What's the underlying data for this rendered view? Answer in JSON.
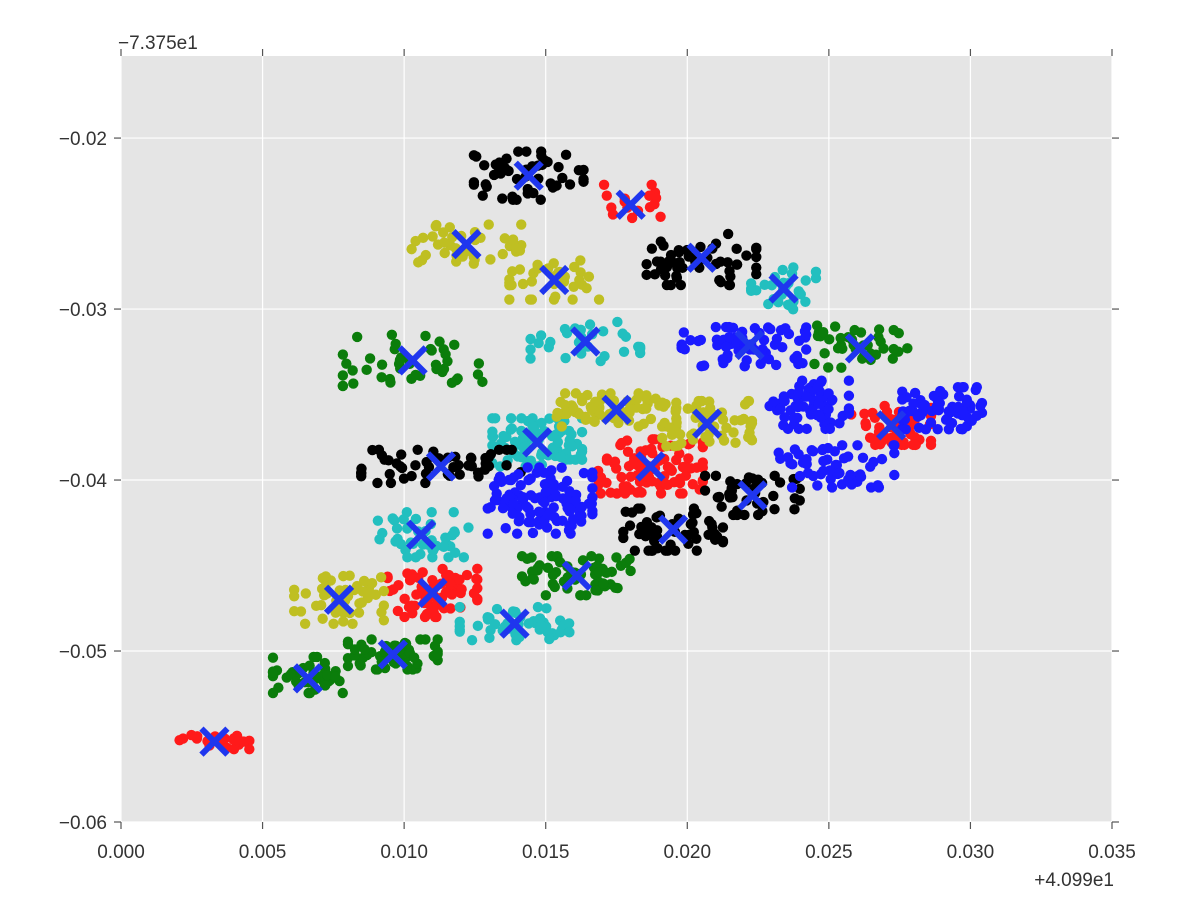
{
  "chart_data": {
    "type": "scatter",
    "title": "",
    "xlabel": "",
    "ylabel": "",
    "x_offset_label": "+4.099e1",
    "y_offset_label": "−7.375e1",
    "xlim": [
      0.0,
      0.035
    ],
    "ylim": [
      -0.06,
      -0.0152
    ],
    "x_ticks": [
      0.0,
      0.005,
      0.01,
      0.015,
      0.02,
      0.025,
      0.03,
      0.035
    ],
    "x_tick_labels": [
      "0.000",
      "0.005",
      "0.010",
      "0.015",
      "0.020",
      "0.025",
      "0.030",
      "0.035"
    ],
    "y_ticks": [
      -0.02,
      -0.03,
      -0.04,
      -0.05,
      -0.06
    ],
    "y_tick_labels": [
      "−0.02",
      "−0.03",
      "−0.04",
      "−0.05",
      "−0.06"
    ],
    "grid": true,
    "legend": "none",
    "colors": {
      "plot_background": "#e5e5e5",
      "grid": "#ffffff",
      "red": "#ff1a1a",
      "green": "#0b7d0b",
      "cyan": "#22bfbf",
      "yellow": "#bfbf22",
      "black": "#000000",
      "blue": "#1a1aff",
      "centroid": "#1f36ee"
    },
    "centroid_marker": "x",
    "series": [
      {
        "color": "#ff1a1a",
        "clusters": [
          {
            "center": [
              0.0033,
              -0.0553
            ],
            "spread": [
              0.0014,
              0.0005
            ],
            "n": 22
          },
          {
            "center": [
              0.011,
              -0.0466
            ],
            "spread": [
              0.0018,
              0.0016
            ],
            "n": 70
          },
          {
            "center": [
              0.0187,
              -0.0392
            ],
            "spread": [
              0.0021,
              0.0018
            ],
            "n": 95
          },
          {
            "center": [
              0.0272,
              -0.0368
            ],
            "spread": [
              0.0016,
              0.0013
            ],
            "n": 55
          },
          {
            "center": [
              0.018,
              -0.0237
            ],
            "spread": [
              0.0012,
              0.0011
            ],
            "n": 16
          }
        ]
      },
      {
        "color": "#0b7d0b",
        "clusters": [
          {
            "center": [
              0.0066,
              -0.0514
            ],
            "spread": [
              0.0014,
              0.0012
            ],
            "n": 40
          },
          {
            "center": [
              0.0096,
              -0.0502
            ],
            "spread": [
              0.0018,
              0.001
            ],
            "n": 55
          },
          {
            "center": [
              0.0161,
              -0.0456
            ],
            "spread": [
              0.0022,
              0.0013
            ],
            "n": 60
          },
          {
            "center": [
              0.0103,
              -0.033
            ],
            "spread": [
              0.0028,
              0.0017
            ],
            "n": 45
          },
          {
            "center": [
              0.0261,
              -0.0322
            ],
            "spread": [
              0.0019,
              0.0014
            ],
            "n": 40
          }
        ]
      },
      {
        "color": "#22bfbf",
        "clusters": [
          {
            "center": [
              0.0106,
              -0.0432
            ],
            "spread": [
              0.0019,
              0.0015
            ],
            "n": 45
          },
          {
            "center": [
              0.0139,
              -0.0484
            ],
            "spread": [
              0.0022,
              0.0011
            ],
            "n": 50
          },
          {
            "center": [
              0.0147,
              -0.0378
            ],
            "spread": [
              0.0018,
              0.0016
            ],
            "n": 80
          },
          {
            "center": [
              0.0164,
              -0.0319
            ],
            "spread": [
              0.0022,
              0.0013
            ],
            "n": 30
          },
          {
            "center": [
              0.0234,
              -0.0288
            ],
            "spread": [
              0.0013,
              0.0014
            ],
            "n": 30
          }
        ]
      },
      {
        "color": "#bfbf22",
        "clusters": [
          {
            "center": [
              0.0077,
              -0.047
            ],
            "spread": [
              0.0018,
              0.0016
            ],
            "n": 50
          },
          {
            "center": [
              0.0122,
              -0.0262
            ],
            "spread": [
              0.0022,
              0.0013
            ],
            "n": 40
          },
          {
            "center": [
              0.0153,
              -0.0283
            ],
            "spread": [
              0.0018,
              0.0013
            ],
            "n": 35
          },
          {
            "center": [
              0.0175,
              -0.0359
            ],
            "spread": [
              0.0024,
              0.0011
            ],
            "n": 75
          },
          {
            "center": [
              0.0207,
              -0.0367
            ],
            "spread": [
              0.0018,
              0.0015
            ],
            "n": 60
          }
        ]
      },
      {
        "color": "#000000",
        "clusters": [
          {
            "center": [
              0.0113,
              -0.0392
            ],
            "spread": [
              0.0032,
              0.0011
            ],
            "n": 50
          },
          {
            "center": [
              0.0144,
              -0.0222
            ],
            "spread": [
              0.0022,
              0.0016
            ],
            "n": 50
          },
          {
            "center": [
              0.0205,
              -0.0271
            ],
            "spread": [
              0.0022,
              0.0017
            ],
            "n": 55
          },
          {
            "center": [
              0.0195,
              -0.0429
            ],
            "spread": [
              0.002,
              0.0014
            ],
            "n": 55
          },
          {
            "center": [
              0.0223,
              -0.0409
            ],
            "spread": [
              0.0019,
              0.0013
            ],
            "n": 45
          }
        ]
      },
      {
        "color": "#1a1aff",
        "clusters": [
          {
            "center": [
              0.0148,
              -0.0412
            ],
            "spread": [
              0.0021,
              0.0022
            ],
            "n": 110
          },
          {
            "center": [
              0.022,
              -0.0322
            ],
            "spread": [
              0.0025,
              0.0013
            ],
            "n": 70
          },
          {
            "center": [
              0.0243,
              -0.0356
            ],
            "spread": [
              0.0016,
              0.0016
            ],
            "n": 70
          },
          {
            "center": [
              0.029,
              -0.0358
            ],
            "spread": [
              0.0016,
              0.0014
            ],
            "n": 70
          },
          {
            "center": [
              0.0252,
              -0.0392
            ],
            "spread": [
              0.0024,
              0.0014
            ],
            "n": 55
          }
        ]
      }
    ],
    "centroids": [
      {
        "x": 0.0033,
        "y": -0.0553
      },
      {
        "x": 0.0066,
        "y": -0.0516
      },
      {
        "x": 0.0077,
        "y": -0.047
      },
      {
        "x": 0.0096,
        "y": -0.0502
      },
      {
        "x": 0.011,
        "y": -0.0466
      },
      {
        "x": 0.0106,
        "y": -0.0432
      },
      {
        "x": 0.0113,
        "y": -0.0392
      },
      {
        "x": 0.0103,
        "y": -0.033
      },
      {
        "x": 0.0122,
        "y": -0.0262
      },
      {
        "x": 0.0139,
        "y": -0.0484
      },
      {
        "x": 0.0147,
        "y": -0.0378
      },
      {
        "x": 0.0144,
        "y": -0.0222
      },
      {
        "x": 0.0153,
        "y": -0.0283
      },
      {
        "x": 0.0161,
        "y": -0.0456
      },
      {
        "x": 0.0164,
        "y": -0.0319
      },
      {
        "x": 0.0175,
        "y": -0.0359
      },
      {
        "x": 0.018,
        "y": -0.0239
      },
      {
        "x": 0.0187,
        "y": -0.0392
      },
      {
        "x": 0.0195,
        "y": -0.0429
      },
      {
        "x": 0.0205,
        "y": -0.027
      },
      {
        "x": 0.0207,
        "y": -0.0367
      },
      {
        "x": 0.0223,
        "y": -0.0409
      },
      {
        "x": 0.0222,
        "y": -0.0321
      },
      {
        "x": 0.0234,
        "y": -0.0288
      },
      {
        "x": 0.0261,
        "y": -0.0323
      },
      {
        "x": 0.0272,
        "y": -0.0368
      }
    ]
  }
}
